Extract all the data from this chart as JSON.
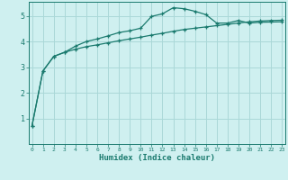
{
  "x": [
    0,
    1,
    2,
    3,
    4,
    5,
    6,
    7,
    8,
    9,
    10,
    11,
    12,
    13,
    14,
    15,
    16,
    17,
    18,
    19,
    20,
    21,
    22,
    23
  ],
  "line1_y": [
    0.72,
    2.85,
    3.42,
    3.58,
    3.82,
    4.0,
    4.1,
    4.22,
    4.35,
    4.42,
    4.52,
    4.98,
    5.08,
    5.32,
    5.28,
    5.18,
    5.05,
    4.72,
    4.72,
    4.82,
    4.72,
    4.75,
    4.76,
    4.77
  ],
  "line2_y": [
    0.72,
    2.85,
    3.42,
    3.58,
    3.7,
    3.8,
    3.87,
    3.95,
    4.03,
    4.1,
    4.17,
    4.25,
    4.32,
    4.4,
    4.47,
    4.52,
    4.57,
    4.62,
    4.67,
    4.72,
    4.77,
    4.8,
    4.82,
    4.83
  ],
  "line_color": "#1a7a6e",
  "bg_color": "#cff0f0",
  "grid_color": "#aad8d8",
  "xlabel": "Humidex (Indice chaleur)",
  "ylim": [
    0,
    5.55
  ],
  "xlim": [
    -0.3,
    23.3
  ],
  "yticks": [
    1,
    2,
    3,
    4,
    5
  ],
  "xticks": [
    0,
    1,
    2,
    3,
    4,
    5,
    6,
    7,
    8,
    9,
    10,
    11,
    12,
    13,
    14,
    15,
    16,
    17,
    18,
    19,
    20,
    21,
    22,
    23
  ]
}
